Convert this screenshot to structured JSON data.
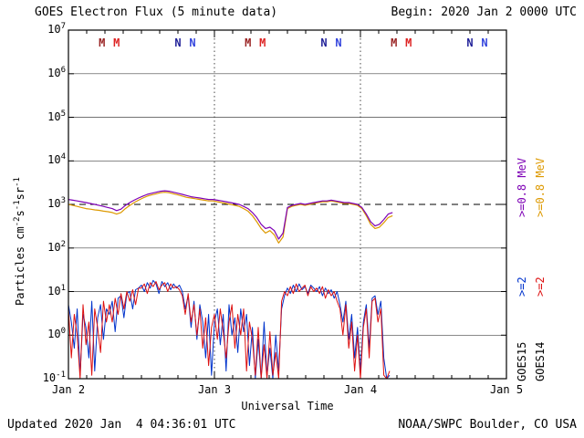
{
  "header": {
    "title": "GOES Electron Flux (5 minute data)",
    "begin": "Begin: 2020 Jan 2 0000 UTC"
  },
  "footer": {
    "updated": "Updated 2020 Jan  4 04:36:01 UTC",
    "source": "NOAA/SWPC Boulder, CO USA"
  },
  "axes": {
    "x": {
      "label": "Universal Time",
      "tick_labels": [
        "Jan 2",
        "Jan 3",
        "Jan 4",
        "Jan 5"
      ],
      "range_days": [
        0,
        3
      ]
    },
    "y": {
      "label_parts": {
        "p0": "Particles cm",
        "s0": "-2",
        "p1": "s",
        "s1": "-1",
        "p2": "sr",
        "s2": "-1"
      },
      "tick_base": "10",
      "tick_exponents": [
        7,
        6,
        5,
        4,
        3,
        2,
        1,
        0,
        -1
      ],
      "log_range": [
        -1,
        7
      ]
    }
  },
  "threshold": {
    "exponent": 3,
    "value": 1000,
    "style": "dashed"
  },
  "colors": {
    "goes15_e08": "#7d00b5",
    "goes14_e08": "#dd9900",
    "goes15_e2": "#0033cc",
    "goes14_e2": "#dd1111"
  },
  "right_legend": {
    "e08_label": ">=0.8 MeV",
    "e2_label": ">=2",
    "goes15": "GOES15",
    "goes14": "GOES14"
  },
  "day_markers": {
    "days": [
      0,
      1,
      2
    ],
    "m_char": "M",
    "n_char": "N",
    "m_offsets": [
      0.23,
      0.33
    ],
    "n_offsets": [
      0.75,
      0.85
    ],
    "m_colors": [
      "#992222",
      "#dd2222"
    ],
    "n_colors": [
      "#222299",
      "#3344dd"
    ]
  },
  "chart_data": {
    "type": "line",
    "title": "GOES Electron Flux (5 minute data)",
    "x_unit": "days since 2020 Jan 2 0000 UTC",
    "y_unit": "particles cm^-2 s^-1 sr^-1",
    "y_scale": "log",
    "ylim": [
      0.1,
      10000000
    ],
    "xlim_days": [
      0,
      3
    ],
    "series": [
      {
        "id": "goes14-e08",
        "name": "GOES14 >=0.8 MeV",
        "color_key": "goes14_e08",
        "width": 1.2,
        "x0": 0,
        "dx": 0.03,
        "y": [
          1000,
          950,
          900,
          850,
          800,
          780,
          750,
          730,
          700,
          680,
          650,
          600,
          650,
          800,
          950,
          1100,
          1250,
          1400,
          1550,
          1650,
          1750,
          1850,
          1900,
          1850,
          1750,
          1650,
          1550,
          1450,
          1400,
          1350,
          1300,
          1250,
          1200,
          1200,
          1150,
          1100,
          1050,
          1000,
          950,
          900,
          800,
          700,
          550,
          400,
          280,
          220,
          250,
          200,
          130,
          180,
          800,
          900,
          950,
          1000,
          950,
          1000,
          1050,
          1100,
          1150,
          1150,
          1200,
          1150,
          1100,
          1050,
          1050,
          1000,
          950,
          800,
          550,
          350,
          280,
          300,
          380,
          500,
          550
        ]
      },
      {
        "id": "goes15-e08",
        "name": "GOES15 >=0.8 MeV",
        "color_key": "goes15_e08",
        "width": 1.2,
        "x0": 0,
        "dx": 0.03,
        "y": [
          1300,
          1250,
          1200,
          1150,
          1100,
          1050,
          1000,
          950,
          900,
          850,
          800,
          720,
          780,
          950,
          1100,
          1250,
          1400,
          1550,
          1700,
          1800,
          1900,
          2000,
          2050,
          2000,
          1900,
          1800,
          1700,
          1600,
          1500,
          1450,
          1400,
          1350,
          1300,
          1300,
          1250,
          1200,
          1150,
          1100,
          1050,
          1000,
          900,
          800,
          650,
          500,
          350,
          280,
          300,
          250,
          160,
          220,
          850,
          950,
          1000,
          1050,
          1000,
          1050,
          1100,
          1150,
          1200,
          1200,
          1250,
          1200,
          1150,
          1100,
          1100,
          1050,
          1000,
          850,
          600,
          400,
          320,
          350,
          450,
          600,
          650
        ]
      },
      {
        "id": "goes15-e2",
        "name": "GOES15 >=2 MeV",
        "color_key": "goes15_e2",
        "width": 1,
        "x0": 0,
        "dx": 0.02,
        "y": [
          5,
          2,
          0.5,
          4,
          0.12,
          3,
          1.5,
          0.3,
          6,
          0.15,
          2.5,
          5,
          0.8,
          4,
          3,
          6,
          1.2,
          7,
          8,
          2.5,
          9,
          10,
          4,
          11,
          12,
          14,
          10,
          16,
          12,
          18,
          15,
          9,
          17,
          13,
          16,
          11,
          15,
          12,
          14,
          10,
          4,
          8,
          1.5,
          6,
          0.8,
          5,
          2,
          0.3,
          3,
          0.12,
          2,
          4,
          0.6,
          3,
          0.15,
          5,
          1,
          2.5,
          0.4,
          4,
          1.2,
          3,
          0.2,
          1.5,
          0.1,
          0.8,
          0.1,
          2,
          0.12,
          0.5,
          0.1,
          1,
          0.15,
          4,
          8,
          12,
          9,
          14,
          10,
          15,
          11,
          13,
          9,
          14,
          12,
          10,
          13,
          8,
          12,
          9,
          11,
          7,
          10,
          5,
          2,
          6,
          0.8,
          3,
          0.3,
          1.5,
          0.15,
          2,
          5,
          0.5,
          7,
          8,
          3,
          6,
          0.3,
          0.1,
          0.12
        ]
      },
      {
        "id": "goes14-e2",
        "name": "GOES14 >=2 MeV",
        "color_key": "goes14_e2",
        "width": 1,
        "x0": 0,
        "dx": 0.02,
        "y": [
          4,
          0.3,
          3,
          1,
          0.1,
          5,
          0.6,
          2,
          0.12,
          4,
          1.5,
          0.4,
          6,
          2,
          5,
          2,
          7,
          3,
          9,
          4,
          10,
          6,
          11,
          5,
          12,
          12,
          15,
          9,
          16,
          13,
          17,
          11,
          14,
          16,
          10,
          15,
          12,
          13,
          11,
          8,
          3,
          9,
          2,
          5,
          1,
          4,
          0.5,
          2.5,
          0.2,
          1.5,
          3,
          0.8,
          4,
          1.2,
          0.3,
          2,
          5,
          0.5,
          3,
          1,
          4,
          0.15,
          2,
          0.8,
          0.12,
          1.5,
          0.1,
          0.6,
          0.1,
          1.2,
          0.12,
          0.4,
          0.1,
          6,
          10,
          8,
          13,
          9,
          15,
          10,
          12,
          14,
          8,
          13,
          10,
          12,
          9,
          13,
          7,
          11,
          8,
          10,
          6,
          4,
          1,
          5,
          0.5,
          2,
          0.15,
          1,
          0.1,
          1.5,
          4,
          0.3,
          6,
          7,
          2,
          4,
          0.12,
          0.1,
          0.15
        ]
      }
    ]
  }
}
